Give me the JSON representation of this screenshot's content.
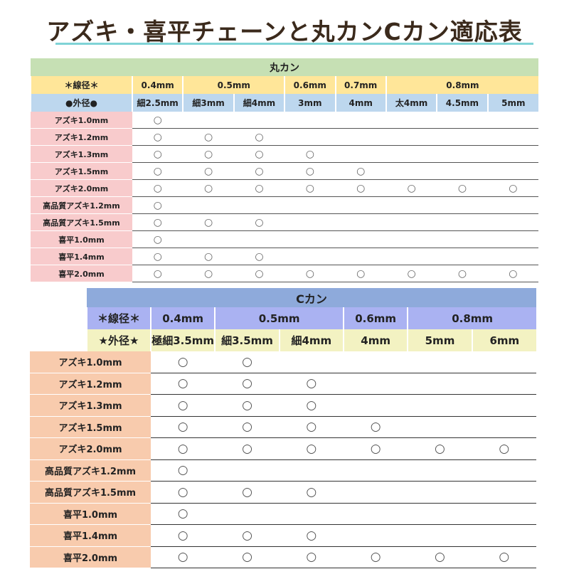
{
  "title": "アズキ・喜平チェーンと丸カンCカン適応表",
  "mark": "○",
  "colors": {
    "marukan_title": "#c6e0b4",
    "marukan_wire": "#ffe699",
    "marukan_outer": "#bdd7ee",
    "marukan_label": "#f8cbcc",
    "ckan_title": "#8eaadb",
    "ckan_wire": "#aab2f2",
    "ckan_outer": "#f3f2c2",
    "ckan_label": "#f8cbad",
    "underline": "#7fd3d6"
  },
  "marukan": {
    "title": "丸カン",
    "wire_label": "＊線径＊",
    "wire": [
      {
        "label": "0.4mm",
        "span": 1
      },
      {
        "label": "0.5mm",
        "span": 2
      },
      {
        "label": "0.6mm",
        "span": 1
      },
      {
        "label": "0.7mm",
        "span": 1
      },
      {
        "label": "0.8mm",
        "span": 3
      }
    ],
    "outer_label": "●外径●",
    "outer": [
      "細2.5mm",
      "細3mm",
      "細4mm",
      "3mm",
      "4mm",
      "太4mm",
      "4.5mm",
      "5mm"
    ],
    "rows": [
      {
        "label": "アズキ1.0mm",
        "fit": [
          1,
          0,
          0,
          0,
          0,
          0,
          0,
          0
        ]
      },
      {
        "label": "アズキ1.2mm",
        "fit": [
          1,
          1,
          1,
          0,
          0,
          0,
          0,
          0
        ]
      },
      {
        "label": "アズキ1.3mm",
        "fit": [
          1,
          1,
          1,
          1,
          0,
          0,
          0,
          0
        ]
      },
      {
        "label": "アズキ1.5mm",
        "fit": [
          1,
          1,
          1,
          1,
          1,
          0,
          0,
          0
        ]
      },
      {
        "label": "アズキ2.0mm",
        "fit": [
          1,
          1,
          1,
          1,
          1,
          1,
          1,
          1
        ]
      },
      {
        "label": "高品質アズキ1.2mm",
        "fit": [
          1,
          0,
          0,
          0,
          0,
          0,
          0,
          0
        ]
      },
      {
        "label": "高品質アズキ1.5mm",
        "fit": [
          1,
          1,
          1,
          0,
          0,
          0,
          0,
          0
        ]
      },
      {
        "label": "喜平1.0mm",
        "fit": [
          1,
          0,
          0,
          0,
          0,
          0,
          0,
          0
        ]
      },
      {
        "label": "喜平1.4mm",
        "fit": [
          1,
          1,
          1,
          0,
          0,
          0,
          0,
          0
        ]
      },
      {
        "label": "喜平2.0mm",
        "fit": [
          1,
          1,
          1,
          1,
          1,
          1,
          1,
          1
        ]
      }
    ]
  },
  "ckan": {
    "title": "Cカン",
    "wire_label": "＊線径＊",
    "wire": [
      {
        "label": "0.4mm",
        "span": 1
      },
      {
        "label": "0.5mm",
        "span": 2
      },
      {
        "label": "0.6mm",
        "span": 1
      },
      {
        "label": "0.8mm",
        "span": 2
      }
    ],
    "outer_label": "★外径★",
    "outer": [
      "極細3.5mm",
      "細3.5mm",
      "細4mm",
      "4mm",
      "5mm",
      "6mm"
    ],
    "rows": [
      {
        "label": "アズキ1.0mm",
        "fit": [
          1,
          1,
          0,
          0,
          0,
          0
        ]
      },
      {
        "label": "アズキ1.2mm",
        "fit": [
          1,
          1,
          1,
          0,
          0,
          0
        ]
      },
      {
        "label": "アズキ1.3mm",
        "fit": [
          1,
          1,
          1,
          0,
          0,
          0
        ]
      },
      {
        "label": "アズキ1.5mm",
        "fit": [
          1,
          1,
          1,
          1,
          0,
          0
        ]
      },
      {
        "label": "アズキ2.0mm",
        "fit": [
          1,
          1,
          1,
          1,
          1,
          1
        ]
      },
      {
        "label": "高品質アズキ1.2mm",
        "fit": [
          1,
          0,
          0,
          0,
          0,
          0
        ]
      },
      {
        "label": "高品質アズキ1.5mm",
        "fit": [
          1,
          1,
          1,
          0,
          0,
          0
        ]
      },
      {
        "label": "喜平1.0mm",
        "fit": [
          1,
          0,
          0,
          0,
          0,
          0
        ]
      },
      {
        "label": "喜平1.4mm",
        "fit": [
          1,
          1,
          1,
          0,
          0,
          0
        ]
      },
      {
        "label": "喜平2.0mm",
        "fit": [
          1,
          1,
          1,
          1,
          1,
          1
        ]
      }
    ]
  }
}
